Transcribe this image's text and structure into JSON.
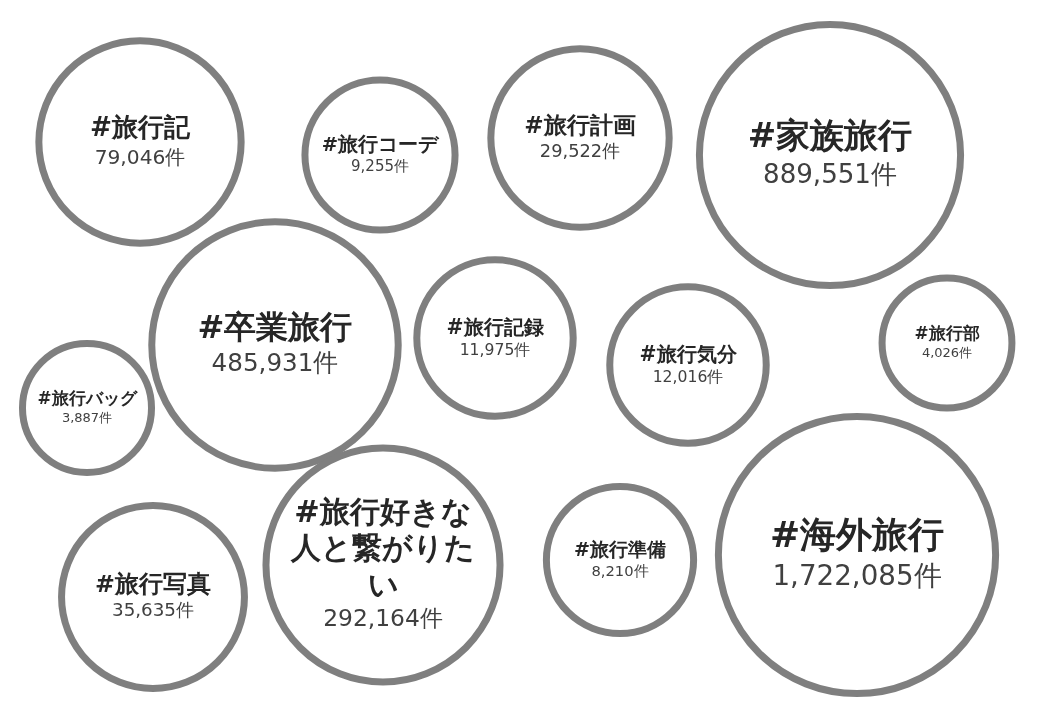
{
  "chart_data": {
    "type": "other",
    "color": "#7f7f7f",
    "categories": [
      "#旅行記",
      "#旅行コーデ",
      "#旅行計画",
      "#家族旅行",
      "#卒業旅行",
      "#旅行記録",
      "#旅行気分",
      "#旅行部",
      "#旅行バッグ",
      "#旅行写真",
      "#旅行好きな人と繋がりたい",
      "#旅行準備",
      "#海外旅行"
    ],
    "values": [
      79046,
      9255,
      29522,
      889551,
      485931,
      11975,
      12016,
      4026,
      3887,
      35635,
      292164,
      8210,
      1722085
    ],
    "value_labels": [
      "79,046件",
      "9,255件",
      "29,522件",
      "889,551件",
      "485,931件",
      "11,975件",
      "12,016件",
      "4,026件",
      "3,887件",
      "35,635件",
      "292,164件",
      "8,210件",
      "1,722,085件"
    ]
  }
}
